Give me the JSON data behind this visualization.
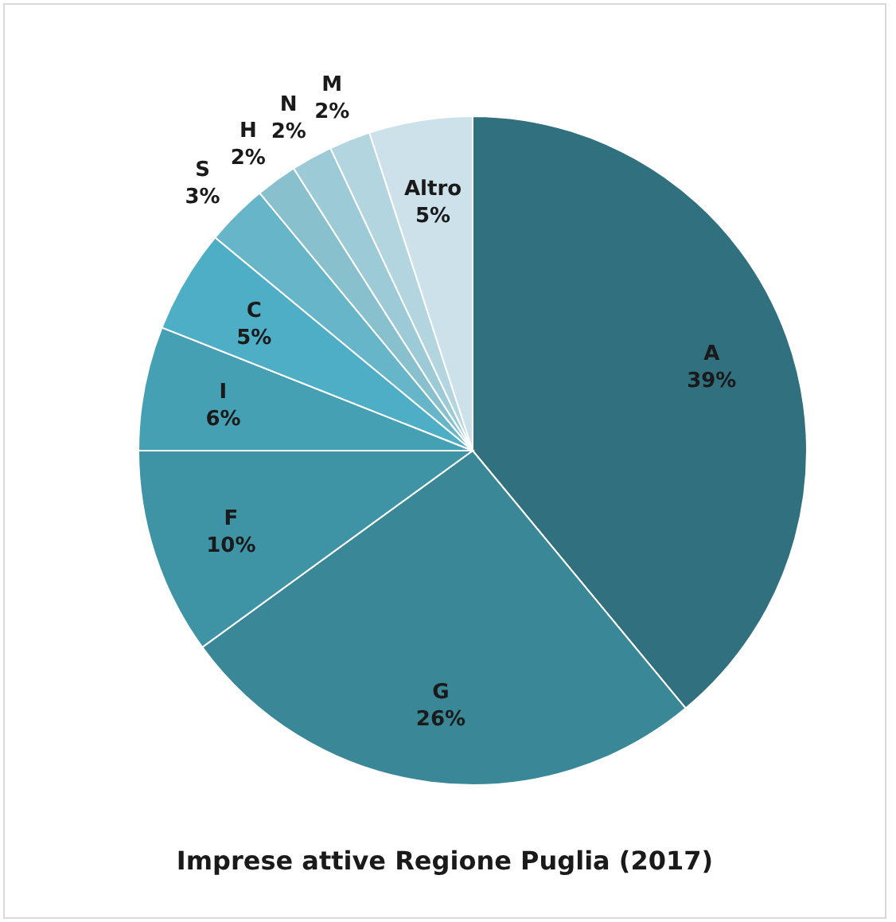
{
  "chart_data": {
    "type": "pie",
    "title": "Imprese attive Regione Puglia (2017)",
    "categories": [
      "A",
      "G",
      "F",
      "I",
      "C",
      "S",
      "H",
      "N",
      "M",
      "Altro"
    ],
    "values": [
      39,
      26,
      10,
      6,
      5,
      3,
      2,
      2,
      2,
      5
    ],
    "value_labels": [
      "39%",
      "26%",
      "10%",
      "6%",
      "5%",
      "3%",
      "2%",
      "2%",
      "2%",
      "5%"
    ],
    "colors": [
      "#31707e",
      "#3a8797",
      "#3e93a5",
      "#46a0b3",
      "#4daec6",
      "#66b5c8",
      "#88c0ce",
      "#9dcad7",
      "#b3d5df",
      "#cce1e9"
    ]
  }
}
